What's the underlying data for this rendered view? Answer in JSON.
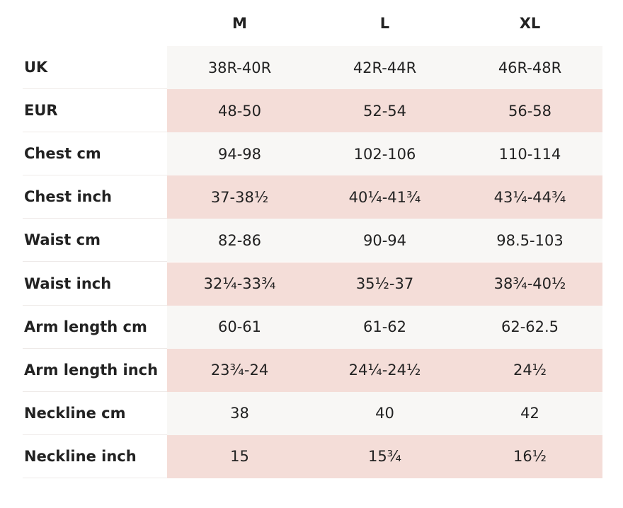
{
  "table": {
    "columns": [
      "M",
      "L",
      "XL"
    ],
    "rows": [
      [
        "UK",
        "38R-40R",
        "42R-44R",
        "46R-48R"
      ],
      [
        "EUR",
        "48-50",
        "52-54",
        "56-58"
      ],
      [
        "Chest cm",
        "94-98",
        "102-106",
        "110-114"
      ],
      [
        "Chest inch",
        "37-38½",
        "40¼-41¾",
        "43¼-44¾"
      ],
      [
        "Waist cm",
        "82-86",
        "90-94",
        "98.5-103"
      ],
      [
        "Waist inch",
        "32¼-33¾",
        "35½-37",
        "38¾-40½"
      ],
      [
        "Arm length cm",
        "60-61",
        "61-62",
        "62-62.5"
      ],
      [
        "Arm length inch",
        "23¾-24",
        "24¼-24½",
        "24½"
      ],
      [
        "Neckline cm",
        "38",
        "40",
        "42"
      ],
      [
        "Neckline inch",
        "15",
        "15¾",
        "16½"
      ]
    ]
  }
}
